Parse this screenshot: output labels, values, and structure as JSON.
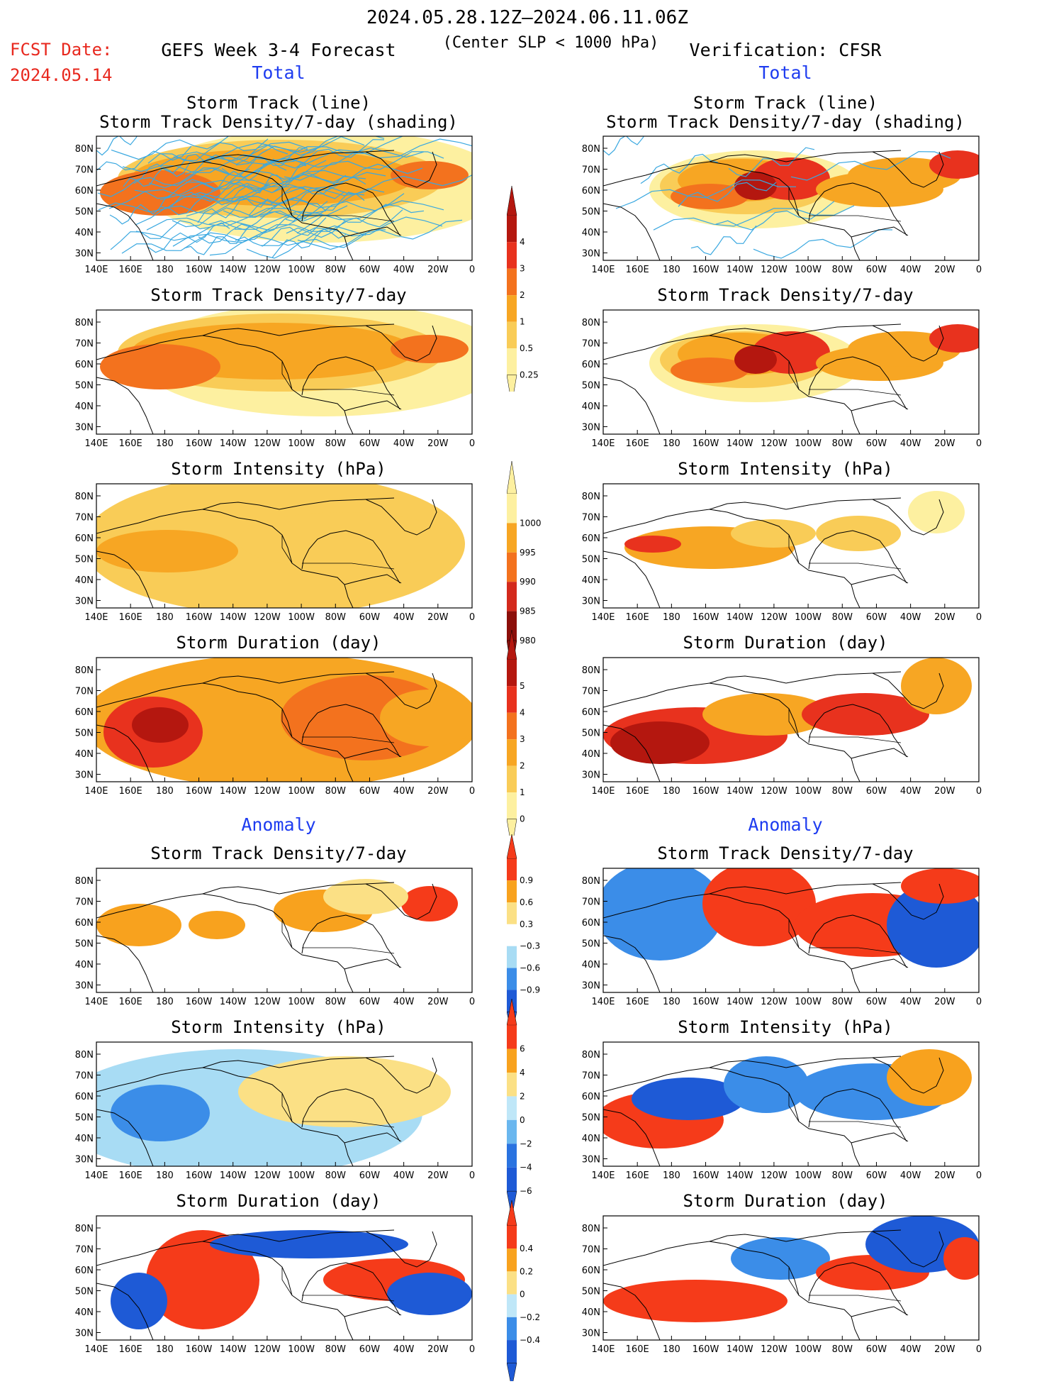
{
  "header": {
    "date_range": "2024.05.28.12Z–2024.06.11.06Z",
    "fcst_label": "FCST Date:",
    "fcst_date": "2024.05.14",
    "left_title": "GEFS Week 3-4 Forecast",
    "center_note": "(Center SLP < 1000 hPa)",
    "right_title": "Verification: CFSR"
  },
  "sections": {
    "total": "Total",
    "anomaly": "Anomaly"
  },
  "panel_titles": {
    "track_line": "Storm Track (line)",
    "track_shading": "Storm Track Density/7-day (shading)",
    "density": "Storm Track Density/7-day",
    "intensity": "Storm Intensity (hPa)",
    "duration": "Storm Duration (day)"
  },
  "axes": {
    "lat_ticks": [
      "80N",
      "70N",
      "60N",
      "50N",
      "40N",
      "30N"
    ],
    "lon_ticks": [
      "140E",
      "160E",
      "180",
      "160W",
      "140W",
      "120W",
      "100W",
      "80W",
      "60W",
      "40W",
      "20W",
      "0"
    ]
  },
  "colorbars": {
    "density_total": {
      "labels": [
        "4",
        "3",
        "2",
        "1",
        "0.5",
        "0.25"
      ],
      "colors": [
        "#b4170f",
        "#e8321e",
        "#f3721e",
        "#f7a623",
        "#f9cc57",
        "#fdf0a0"
      ]
    },
    "intensity_total": {
      "labels": [
        "1000",
        "995",
        "990",
        "985",
        "980"
      ],
      "colors": [
        "#fdf0a0",
        "#f7a623",
        "#f3721e",
        "#d32a1c",
        "#8c0f0a"
      ]
    },
    "duration_total": {
      "labels": [
        "5",
        "4",
        "3",
        "2",
        "1",
        "0"
      ],
      "colors": [
        "#b4170f",
        "#e8321e",
        "#f3721e",
        "#f7a623",
        "#f9cc57",
        "#fdf0a0"
      ]
    },
    "density_anom": {
      "labels": [
        "0.9",
        "0.6",
        "0.3",
        "−0.3",
        "−0.6",
        "−0.9"
      ],
      "colors": [
        "#f53b1a",
        "#f8a21e",
        "#fbe085",
        "#ffffff",
        "#a8dcf4",
        "#3b8de8",
        "#1e5ad6"
      ]
    },
    "intensity_anom": {
      "labels": [
        "6",
        "4",
        "2",
        "0",
        "−2",
        "−4",
        "−6"
      ],
      "colors": [
        "#f53b1a",
        "#f8a21e",
        "#fbe085",
        "#bfe7f8",
        "#6ab7ef",
        "#2a73e0",
        "#1e5ad6"
      ]
    },
    "duration_anom": {
      "labels": [
        "0.4",
        "0.2",
        "0",
        "−0.2",
        "−0.4"
      ],
      "colors": [
        "#f53b1a",
        "#f8a21e",
        "#fbe085",
        "#bfe7f8",
        "#3b8de8",
        "#1e5ad6"
      ]
    }
  },
  "colors": {
    "track_line": "#3aa8e0",
    "seq": [
      "#fdf0a0",
      "#f9cc57",
      "#f7a623",
      "#f3721e",
      "#e8321e",
      "#b4170f"
    ],
    "div": [
      "#1e5ad6",
      "#3b8de8",
      "#a8dcf4",
      "#ffffff",
      "#fbe085",
      "#f8a21e",
      "#f53b1a"
    ]
  }
}
